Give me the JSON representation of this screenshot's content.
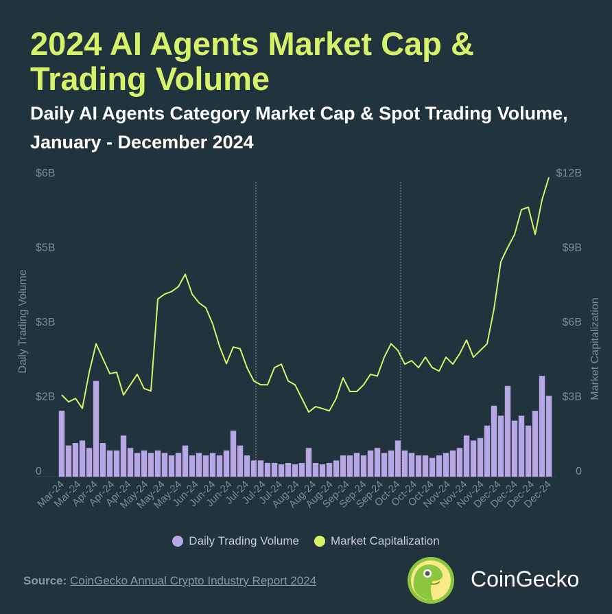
{
  "title": "2024 AI Agents Market Cap & Trading Volume",
  "subtitle": "Daily AI Agents Category Market Cap & Spot Trading Volume, January - December 2024",
  "source_label": "Source:",
  "source_text": "CoinGecko Annual Crypto Industry Report 2024",
  "brand": "CoinGecko",
  "colors": {
    "background": "#21343e",
    "volume": "#b8a9e6",
    "market_cap": "#d6f26b",
    "axis_text": "#7e8b92"
  },
  "chart_data": {
    "type": "bar+line",
    "ylabel_left": "Daily Trading Volume",
    "ylabel_right": "Market Capitalization",
    "yticks_left": [
      "0",
      "$2B",
      "$3B",
      "$5B",
      "$6B"
    ],
    "yticks_right": [
      "0",
      "$3B",
      "$6B",
      "$9B",
      "$12B"
    ],
    "ylim_left": [
      0,
      6
    ],
    "ylim_right": [
      0,
      12
    ],
    "units": "USD billions",
    "xtick_labels": [
      "Mar-24",
      "Mar-24",
      "Apr-24",
      "Apr-24",
      "Apr-24",
      "May-24",
      "May-24",
      "May-24",
      "Jun-24",
      "Jun-24",
      "Jun-24",
      "Jul-24",
      "Jul-24",
      "Jul-24",
      "Aug-24",
      "Aug-24",
      "Aug-24",
      "Sep-24",
      "Sep-24",
      "Sep-24",
      "Oct-24",
      "Oct-24",
      "Oct-24",
      "Nov-24",
      "Nov-24",
      "Nov-24",
      "Dec-24",
      "Dec-24",
      "Dec-24",
      "Dec-24"
    ],
    "legend": [
      "Daily Trading Volume",
      "Market Capitalization"
    ],
    "legend_position": "bottom",
    "series": [
      {
        "name": "Daily Trading Volume",
        "type": "bar",
        "axis": "left",
        "values": [
          1.2,
          0.5,
          0.55,
          0.6,
          0.45,
          1.8,
          0.55,
          0.4,
          0.4,
          0.7,
          0.45,
          0.35,
          0.4,
          0.35,
          0.4,
          0.35,
          0.3,
          0.35,
          0.5,
          0.3,
          0.35,
          0.3,
          0.35,
          0.3,
          0.4,
          0.8,
          0.5,
          0.3,
          0.2,
          0.2,
          0.15,
          0.15,
          0.12,
          0.15,
          0.12,
          0.15,
          0.45,
          0.15,
          0.12,
          0.15,
          0.2,
          0.3,
          0.3,
          0.35,
          0.3,
          0.4,
          0.45,
          0.35,
          0.4,
          0.6,
          0.4,
          0.35,
          0.3,
          0.3,
          0.25,
          0.3,
          0.35,
          0.4,
          0.45,
          0.7,
          0.6,
          0.65,
          0.9,
          1.3,
          1.1,
          1.7,
          1.0,
          1.1,
          0.9,
          1.2,
          1.9,
          1.5
        ]
      },
      {
        "name": "Market Capitalization",
        "type": "line",
        "axis": "right",
        "values": [
          3.04,
          2.76,
          2.9,
          2.5,
          3.95,
          5.1,
          4.5,
          3.9,
          3.95,
          3.04,
          3.45,
          3.87,
          3.3,
          3.2,
          6.9,
          7.1,
          7.2,
          7.4,
          7.9,
          7.1,
          6.75,
          6.55,
          5.9,
          5.0,
          4.3,
          4.97,
          4.9,
          4.14,
          3.6,
          3.45,
          3.45,
          4.14,
          4.28,
          3.6,
          3.45,
          2.9,
          2.35,
          2.57,
          2.49,
          2.4,
          2.9,
          3.73,
          3.18,
          3.18,
          3.45,
          3.87,
          3.8,
          4.56,
          5.1,
          4.83,
          4.28,
          4.42,
          4.14,
          4.56,
          4.14,
          4.0,
          4.56,
          4.28,
          4.7,
          5.25,
          4.56,
          4.83,
          5.1,
          6.5,
          8.4,
          8.98,
          9.5,
          10.5,
          10.6,
          9.5,
          10.9,
          11.8
        ]
      }
    ]
  }
}
